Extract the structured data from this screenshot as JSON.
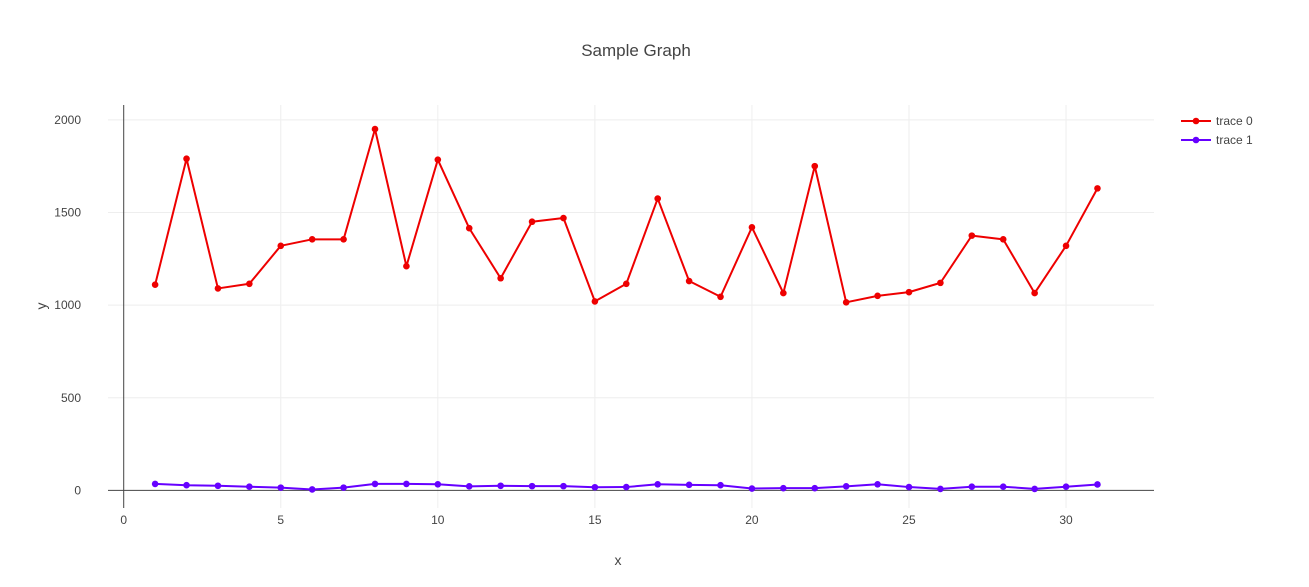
{
  "chart_data": {
    "type": "line",
    "title": "Sample Graph",
    "xlabel": "x",
    "ylabel": "y",
    "xlim": [
      -0.5,
      32.8
    ],
    "ylim": [
      -95,
      2080
    ],
    "xticks": [
      0,
      5,
      10,
      15,
      20,
      25,
      30
    ],
    "yticks": [
      0,
      500,
      1000,
      1500,
      2000
    ],
    "grid": true,
    "legend_position": "top-right",
    "x": [
      1,
      2,
      3,
      4,
      5,
      6,
      7,
      8,
      9,
      10,
      11,
      12,
      13,
      14,
      15,
      16,
      17,
      18,
      19,
      20,
      21,
      22,
      23,
      24,
      25,
      26,
      27,
      28,
      29,
      30,
      31
    ],
    "series": [
      {
        "name": "trace 0",
        "color": "#ee0000",
        "values": [
          1110,
          1790,
          1090,
          1115,
          1320,
          1355,
          1355,
          1950,
          1210,
          1785,
          1415,
          1145,
          1450,
          1470,
          1020,
          1115,
          1575,
          1130,
          1045,
          1420,
          1065,
          1750,
          1015,
          1050,
          1070,
          1120,
          1375,
          1355,
          1065,
          1320,
          1630
        ]
      },
      {
        "name": "trace 1",
        "color": "#6600ff",
        "values": [
          35,
          28,
          25,
          20,
          15,
          5,
          15,
          35,
          35,
          33,
          22,
          25,
          23,
          23,
          17,
          18,
          33,
          30,
          28,
          10,
          12,
          12,
          22,
          33,
          18,
          8,
          20,
          20,
          8,
          20,
          32
        ]
      }
    ]
  }
}
